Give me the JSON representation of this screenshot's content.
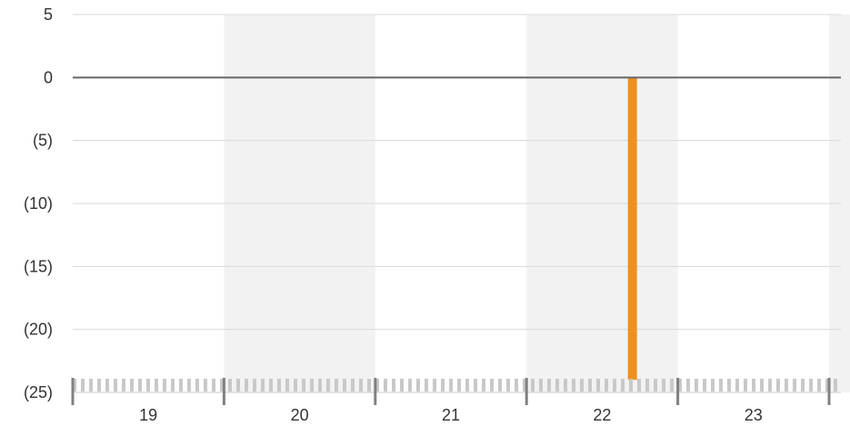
{
  "chart_data": {
    "type": "bar",
    "categories": [
      "19",
      "20",
      "21",
      "22",
      "23"
    ],
    "x_range": [
      18.5,
      23.5
    ],
    "y_ticks": [
      {
        "value": 5,
        "label": "5"
      },
      {
        "value": 0,
        "label": "0"
      },
      {
        "value": -5,
        "label": "(5)"
      },
      {
        "value": -10,
        "label": "(10)"
      },
      {
        "value": -15,
        "label": "(15)"
      },
      {
        "value": -20,
        "label": "(20)"
      },
      {
        "value": -25,
        "label": "(25)"
      }
    ],
    "ylim": [
      -25,
      5
    ],
    "series": [
      {
        "x": 22.2,
        "value": -24,
        "color": "#f0901e"
      }
    ],
    "grid": true,
    "alternating_bands": true,
    "colors": {
      "band": "#f2f2f2",
      "grid": "#d9d9d9",
      "zero_line": "#666666",
      "axis": "#808080",
      "minor_tick": "#c8c8c8",
      "text": "#333333"
    }
  }
}
